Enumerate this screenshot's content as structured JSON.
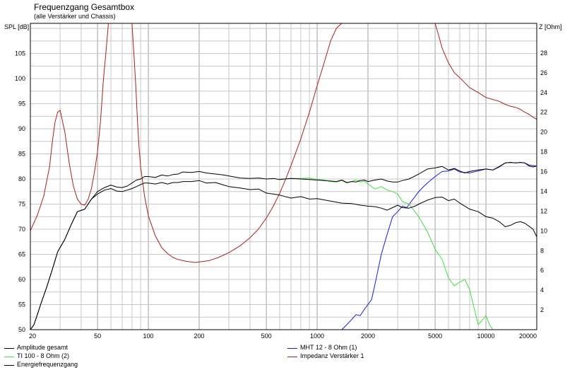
{
  "chart_data": {
    "type": "line",
    "title": "Frequenzgang Gesamtbox",
    "subtitle": "(alle Verstärker und Chassis)",
    "ylabel_left": "SPL [dB]",
    "ylabel_right": "Z [Ohm]",
    "x_scale": "log",
    "xlim": [
      20,
      20000
    ],
    "x_ticks": [
      {
        "value": 20,
        "label": "20"
      },
      {
        "value": 50,
        "label": "50"
      },
      {
        "value": 100,
        "label": "100"
      },
      {
        "value": 200,
        "label": "200"
      },
      {
        "value": 500,
        "label": "500"
      },
      {
        "value": 1000,
        "label": "1000"
      },
      {
        "value": 2000,
        "label": "2000"
      },
      {
        "value": 5000,
        "label": "5000"
      },
      {
        "value": 10000,
        "label": "10000"
      },
      {
        "value": 20000,
        "label": "20000"
      }
    ],
    "ylim_left": [
      50,
      111
    ],
    "y_ticks_left": [
      50,
      55,
      60,
      65,
      70,
      75,
      80,
      85,
      90,
      95,
      100,
      105
    ],
    "ylim_right": [
      0,
      31
    ],
    "y_ticks_right": [
      2,
      4,
      6,
      8,
      10,
      12,
      14,
      16,
      18,
      20,
      22,
      24,
      26,
      28
    ],
    "grid": true,
    "legend_position": "bottom",
    "series": [
      {
        "name": "Amplitude gesamt",
        "color": "#000000",
        "axis": "left",
        "x": [
          20,
          21,
          22,
          23,
          25,
          27,
          29,
          32,
          35,
          38,
          42,
          46,
          50,
          55,
          60,
          65,
          70,
          75,
          80,
          85,
          90,
          95,
          100,
          110,
          120,
          130,
          140,
          150,
          160,
          180,
          200,
          220,
          250,
          280,
          300,
          350,
          400,
          450,
          500,
          550,
          600,
          700,
          800,
          900,
          1000,
          1100,
          1200,
          1300,
          1400,
          1500,
          1600,
          1700,
          1800,
          1900,
          2000,
          2200,
          2400,
          2600,
          2800,
          3000,
          3200,
          3500,
          3800,
          4000,
          4500,
          5000,
          5500,
          6000,
          6500,
          7000,
          7500,
          8000,
          9000,
          10000,
          11000,
          12000,
          13000,
          14000,
          15000,
          16000,
          17000,
          18000,
          19000,
          20000
        ],
        "y": [
          49.5,
          51,
          53,
          55,
          58.5,
          62,
          65.5,
          68,
          71,
          73.5,
          74,
          76,
          77.5,
          78.3,
          78.8,
          78.4,
          78.3,
          78.6,
          79.2,
          79.8,
          80,
          80.5,
          80.5,
          80.3,
          80.8,
          80.6,
          80.9,
          81,
          81.4,
          81.3,
          81.5,
          81.2,
          81,
          80.8,
          80.6,
          80.2,
          80.1,
          80.2,
          80,
          80.1,
          79.9,
          80.1,
          80,
          79.9,
          79.8,
          79.7,
          79.6,
          79.5,
          79.8,
          79.3,
          79.5,
          79.4,
          79.7,
          79.8,
          79.5,
          79.8,
          80,
          79.6,
          79.4,
          79.4,
          79.7,
          80,
          80.6,
          81,
          82,
          82.2,
          82.5,
          81.8,
          82.1,
          81.6,
          81.2,
          81.5,
          81.8,
          82,
          81.8,
          82.5,
          83.2,
          83.3,
          83.2,
          83.3,
          83.2,
          82.6,
          82.4,
          82.6
        ]
      },
      {
        "name": "MHT 12 - 8 Ohm (1)",
        "color": "#1a1ad6",
        "axis": "left",
        "x": [
          20,
          1400,
          1500,
          1600,
          1700,
          1800,
          1900,
          2000,
          2100,
          2200,
          2400,
          2600,
          2800,
          3000,
          3200,
          3400,
          3600,
          3800,
          4000,
          4300,
          4600,
          5000,
          5500,
          6000,
          6500,
          7000,
          8000,
          9000,
          10000,
          11000,
          12000,
          13000,
          14000,
          15000,
          16000,
          17000,
          18000,
          20000
        ],
        "y": [
          50,
          50,
          51,
          52,
          53,
          52.8,
          54,
          55,
          56,
          59,
          65,
          69,
          72.5,
          73.5,
          74.6,
          74.3,
          75.5,
          76.5,
          77.5,
          78.6,
          79.5,
          80.5,
          81.5,
          81.6,
          82,
          81.4,
          81.2,
          81.6,
          82,
          81.8,
          82.4,
          83.2,
          83.3,
          83.2,
          83.3,
          83.2,
          82.8,
          82.6
        ]
      },
      {
        "name": "TI 100 - 8 Ohm (2)",
        "color": "#44dd44",
        "axis": "left",
        "x": [
          600,
          700,
          800,
          900,
          1000,
          1100,
          1200,
          1300,
          1400,
          1500,
          1600,
          1700,
          1800,
          1900,
          2000,
          2200,
          2400,
          2600,
          2800,
          3000,
          3200,
          3500,
          3800,
          4000,
          4500,
          5000,
          5500,
          6000,
          6500,
          7000,
          7500,
          8000,
          9000,
          10000,
          10500,
          11000,
          12000
        ],
        "y": [
          80,
          80.1,
          80.1,
          80.2,
          79.9,
          79.8,
          79.5,
          79.4,
          79.7,
          79.2,
          79.5,
          79.8,
          79.4,
          79.6,
          79,
          78,
          78.5,
          77.8,
          77.5,
          77,
          75.5,
          75,
          73.5,
          72.5,
          69.5,
          66,
          64,
          60.3,
          58.7,
          59.5,
          60,
          58,
          51,
          52.8,
          51,
          49.5,
          49.5
        ]
      },
      {
        "name": "Energiefrequenzgang",
        "color": "#000000",
        "axis": "left",
        "x": [
          20,
          21,
          22,
          23,
          25,
          27,
          29,
          32,
          35,
          38,
          42,
          46,
          50,
          55,
          60,
          65,
          70,
          75,
          80,
          85,
          90,
          95,
          100,
          110,
          120,
          130,
          140,
          150,
          160,
          180,
          200,
          220,
          250,
          280,
          300,
          350,
          400,
          450,
          500,
          550,
          600,
          700,
          800,
          900,
          1000,
          1200,
          1400,
          1600,
          1800,
          2000,
          2200,
          2400,
          2600,
          2800,
          3000,
          3200,
          3500,
          3800,
          4000,
          4500,
          5000,
          5500,
          6000,
          6500,
          7000,
          8000,
          9000,
          10000,
          11000,
          12000,
          13000,
          14000,
          15000,
          16000,
          17000,
          18000,
          19000,
          20000
        ],
        "y": [
          49.5,
          51,
          53,
          55,
          58.5,
          62,
          65.5,
          68,
          71,
          73.5,
          74,
          76,
          77,
          77.8,
          78.1,
          77.6,
          77.5,
          77.8,
          78.1,
          78.5,
          78.9,
          79.2,
          79.2,
          79,
          79.3,
          79,
          79.3,
          79.3,
          79.5,
          79.5,
          79.7,
          79.2,
          79.3,
          78.8,
          78.5,
          78.2,
          77.9,
          78,
          77.2,
          77,
          76.8,
          76.2,
          76.5,
          76,
          76.1,
          75.6,
          75.2,
          75.1,
          74.8,
          74.6,
          74.5,
          74.2,
          73.8,
          74.3,
          74.8,
          74.3,
          74.2,
          74.6,
          75,
          75.8,
          76.3,
          76.4,
          75.7,
          76,
          75.2,
          74,
          73.5,
          72.5,
          72.2,
          71.5,
          70.5,
          70.8,
          71.3,
          71.5,
          71.2,
          70.6,
          70,
          68.5
        ]
      },
      {
        "name": "Impedanz Verstärker 1",
        "color": "#a82020",
        "axis": "right",
        "x": [
          20,
          22,
          24,
          26,
          27,
          28,
          29,
          30,
          32,
          34,
          36,
          38,
          40,
          42,
          44,
          46,
          48,
          50,
          52,
          54,
          56,
          58,
          60,
          80,
          82,
          84,
          86,
          88,
          90,
          95,
          100,
          110,
          120,
          130,
          140,
          150,
          170,
          190,
          210,
          230,
          260,
          300,
          350,
          400,
          450,
          500,
          550,
          600,
          650,
          700,
          750,
          800,
          900,
          1000,
          1100,
          1200,
          1300,
          1400,
          1500,
          5000,
          5200,
          5500,
          6000,
          6500,
          7000,
          8000,
          9000,
          10000,
          11000,
          12000,
          13000,
          14000,
          15000,
          16000,
          17000,
          18000,
          19000,
          20000
        ],
        "y": [
          10,
          11.6,
          13.5,
          16.5,
          19,
          21,
          22,
          22.2,
          20,
          16.8,
          14.5,
          13.2,
          12.7,
          12.6,
          13.2,
          14.3,
          16,
          18,
          21,
          25,
          28,
          31,
          31,
          31,
          28,
          25,
          21.5,
          18.5,
          16.5,
          13.5,
          11.5,
          9.5,
          8.3,
          7.7,
          7.3,
          7.1,
          6.9,
          6.8,
          6.9,
          7,
          7.3,
          7.8,
          8.5,
          9.3,
          10.2,
          11.3,
          12.5,
          13.8,
          15.2,
          16.6,
          18,
          19.3,
          22,
          24.7,
          27,
          29.2,
          30.5,
          31,
          31,
          31,
          30,
          28.5,
          27,
          26,
          25.5,
          24.5,
          24,
          23.5,
          23.3,
          23.1,
          22.8,
          22.6,
          22.5,
          22.3,
          22,
          21.8,
          21.5,
          21.3
        ]
      }
    ]
  }
}
